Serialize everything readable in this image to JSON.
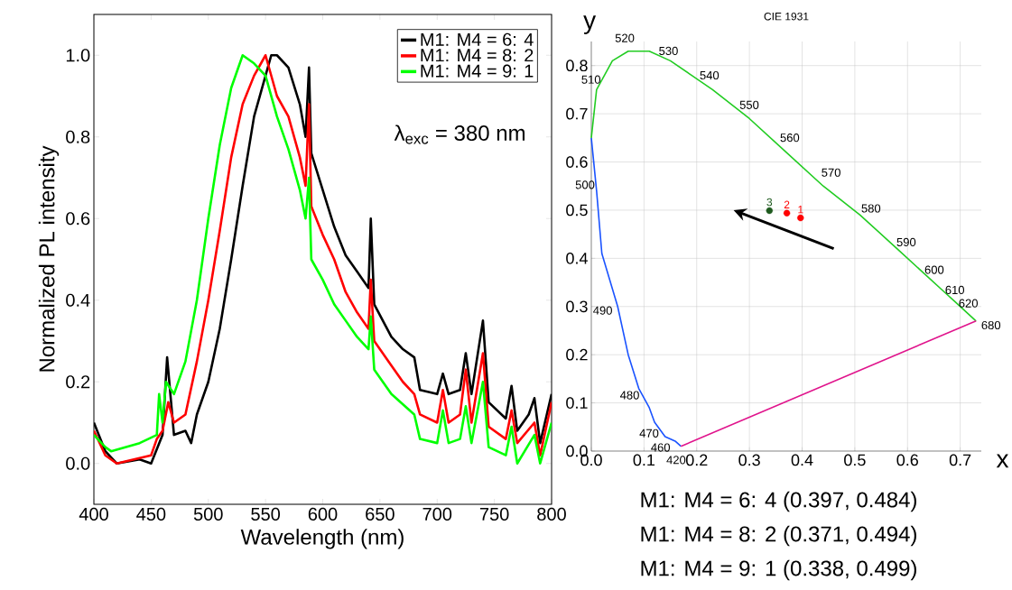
{
  "chart_data": [
    {
      "type": "line",
      "xlabel": "Wavelength (nm)",
      "ylabel": "Normalized PL intensity",
      "xlim": [
        400,
        800
      ],
      "ylim": [
        -0.1,
        1.1
      ],
      "xticks": [
        400,
        450,
        500,
        550,
        600,
        650,
        700,
        750,
        800
      ],
      "yticks": [
        {
          "value": 0,
          "label": "0.0"
        },
        {
          "value": 0.2,
          "label": "0.2"
        },
        {
          "value": 0.4,
          "label": "0.4"
        },
        {
          "value": 0.6,
          "label": "0.6"
        },
        {
          "value": 0.8,
          "label": "0.8"
        },
        {
          "value": 1.0,
          "label": "1.0"
        }
      ],
      "legend": "top right",
      "annotations": [
        "λ$_{exc}$ = 380 nm"
      ],
      "series": [
        {
          "name": "M1: M4 = 6: 4",
          "color": "#000000",
          "x": [
            400,
            410,
            420,
            440,
            450,
            460,
            464,
            470,
            480,
            485,
            490,
            500,
            510,
            520,
            530,
            540,
            550,
            555,
            560,
            570,
            580,
            585,
            588,
            590,
            600,
            610,
            620,
            630,
            640,
            642,
            645,
            660,
            670,
            680,
            685,
            700,
            705,
            710,
            720,
            725,
            730,
            740,
            745,
            760,
            765,
            770,
            780,
            785,
            790,
            800
          ],
          "values": [
            0.1,
            0.03,
            0.0,
            0.01,
            0.0,
            0.07,
            0.26,
            0.07,
            0.08,
            0.05,
            0.12,
            0.2,
            0.33,
            0.5,
            0.68,
            0.85,
            0.95,
            1.0,
            1.0,
            0.97,
            0.88,
            0.8,
            0.97,
            0.76,
            0.67,
            0.58,
            0.51,
            0.47,
            0.43,
            0.6,
            0.39,
            0.31,
            0.28,
            0.26,
            0.18,
            0.17,
            0.22,
            0.17,
            0.18,
            0.27,
            0.17,
            0.35,
            0.15,
            0.11,
            0.19,
            0.08,
            0.12,
            0.16,
            0.05,
            0.17
          ]
        },
        {
          "name": "M1: M4 = 8: 2",
          "color": "#ff0000",
          "x": [
            400,
            410,
            420,
            450,
            455,
            460,
            465,
            470,
            480,
            490,
            500,
            510,
            520,
            530,
            540,
            550,
            560,
            570,
            580,
            585,
            588,
            590,
            600,
            610,
            620,
            630,
            640,
            642,
            645,
            660,
            670,
            680,
            685,
            700,
            705,
            710,
            720,
            725,
            730,
            740,
            745,
            760,
            765,
            770,
            785,
            790,
            800
          ],
          "values": [
            0.08,
            0.02,
            0.0,
            0.02,
            0.06,
            0.08,
            0.15,
            0.1,
            0.12,
            0.25,
            0.4,
            0.57,
            0.75,
            0.88,
            0.95,
            1.0,
            0.9,
            0.85,
            0.75,
            0.68,
            0.88,
            0.63,
            0.56,
            0.5,
            0.42,
            0.37,
            0.33,
            0.45,
            0.3,
            0.24,
            0.2,
            0.17,
            0.12,
            0.1,
            0.18,
            0.1,
            0.12,
            0.23,
            0.1,
            0.27,
            0.09,
            0.06,
            0.13,
            0.05,
            0.1,
            0.02,
            0.15
          ]
        },
        {
          "name": "M1: M4 = 9: 1",
          "color": "#00ff00",
          "x": [
            400,
            410,
            415,
            440,
            455,
            457,
            460,
            463,
            470,
            480,
            490,
            500,
            510,
            520,
            530,
            540,
            550,
            560,
            570,
            580,
            585,
            588,
            590,
            600,
            610,
            620,
            630,
            640,
            642,
            645,
            660,
            680,
            685,
            700,
            705,
            710,
            720,
            725,
            730,
            740,
            745,
            760,
            765,
            770,
            785,
            790,
            800
          ],
          "values": [
            0.07,
            0.04,
            0.03,
            0.05,
            0.07,
            0.17,
            0.1,
            0.2,
            0.17,
            0.25,
            0.4,
            0.6,
            0.78,
            0.92,
            1.0,
            0.98,
            0.95,
            0.85,
            0.77,
            0.67,
            0.6,
            0.7,
            0.5,
            0.45,
            0.39,
            0.35,
            0.31,
            0.28,
            0.36,
            0.23,
            0.17,
            0.12,
            0.06,
            0.05,
            0.13,
            0.05,
            0.06,
            0.14,
            0.05,
            0.2,
            0.04,
            0.02,
            0.09,
            0.0,
            0.07,
            0.0,
            0.1
          ]
        }
      ]
    },
    {
      "type": "scatter",
      "title": "CIE 1931",
      "xlabel": "x",
      "ylabel": "y",
      "xlim": [
        0,
        0.74
      ],
      "ylim": [
        0,
        0.85
      ],
      "xticks": [
        {
          "value": 0,
          "label": "0.0"
        },
        {
          "value": 0.1,
          "label": "0.1"
        },
        {
          "value": 0.2,
          "label": "0.2"
        },
        {
          "value": 0.3,
          "label": "0.3"
        },
        {
          "value": 0.4,
          "label": "0.4"
        },
        {
          "value": 0.5,
          "label": "0.5"
        },
        {
          "value": 0.6,
          "label": "0.6"
        },
        {
          "value": 0.7,
          "label": "0.7"
        }
      ],
      "yticks": [
        {
          "value": 0,
          "label": "0.0"
        },
        {
          "value": 0.1,
          "label": "0.1"
        },
        {
          "value": 0.2,
          "label": "0.2"
        },
        {
          "value": 0.3,
          "label": "0.3"
        },
        {
          "value": 0.4,
          "label": "0.4"
        },
        {
          "value": 0.5,
          "label": "0.5"
        },
        {
          "value": 0.6,
          "label": "0.6"
        },
        {
          "value": 0.7,
          "label": "0.7"
        },
        {
          "value": 0.8,
          "label": "0.8"
        }
      ],
      "grid": true,
      "series": [
        {
          "type": "line",
          "color": "#1a53ff",
          "x": [
            0.0,
            0.01,
            0.02,
            0.05,
            0.07,
            0.09,
            0.11,
            0.12,
            0.14,
            0.16,
            0.17
          ],
          "values": [
            0.65,
            0.54,
            0.41,
            0.3,
            0.2,
            0.13,
            0.09,
            0.06,
            0.03,
            0.02,
            0.01
          ]
        },
        {
          "type": "line",
          "color": "#22cc22",
          "x": [
            0.0,
            0.01,
            0.04,
            0.07,
            0.11,
            0.15,
            0.19,
            0.23,
            0.3,
            0.37,
            0.44,
            0.51,
            0.58,
            0.63,
            0.67,
            0.69,
            0.73
          ],
          "values": [
            0.65,
            0.75,
            0.81,
            0.83,
            0.83,
            0.81,
            0.78,
            0.75,
            0.69,
            0.62,
            0.55,
            0.49,
            0.42,
            0.37,
            0.33,
            0.31,
            0.27
          ]
        },
        {
          "type": "line",
          "color": "#e0148c",
          "x": [
            0.17,
            0.73
          ],
          "values": [
            0.01,
            0.27
          ]
        },
        {
          "name": "1",
          "color": "#ff0000",
          "x": [
            0.397
          ],
          "values": [
            0.484
          ]
        },
        {
          "name": "2",
          "color": "#ff0000",
          "x": [
            0.371
          ],
          "values": [
            0.494
          ]
        },
        {
          "name": "3",
          "color": "#1e5a1e",
          "x": [
            0.338
          ],
          "values": [
            0.499
          ]
        }
      ],
      "annotations": [
        {
          "text": "420",
          "x": 0.1714,
          "y": 0.0051
        },
        {
          "text": "460",
          "x": 0.144,
          "y": 0.0297
        },
        {
          "text": "470",
          "x": 0.1241,
          "y": 0.0578
        },
        {
          "text": "480",
          "x": 0.0913,
          "y": 0.1327
        },
        {
          "text": "490",
          "x": 0.0454,
          "y": 0.295
        },
        {
          "text": "500",
          "x": 0.0082,
          "y": 0.5384
        },
        {
          "text": "510",
          "x": 0.0139,
          "y": 0.7502
        },
        {
          "text": "520",
          "x": 0.0743,
          "y": 0.8338
        },
        {
          "text": "530",
          "x": 0.1547,
          "y": 0.8059
        },
        {
          "text": "540",
          "x": 0.2296,
          "y": 0.7543
        },
        {
          "text": "550",
          "x": 0.3016,
          "y": 0.6923
        },
        {
          "text": "560",
          "x": 0.3731,
          "y": 0.6245
        },
        {
          "text": "570",
          "x": 0.4441,
          "y": 0.5547
        },
        {
          "text": "580",
          "x": 0.5125,
          "y": 0.4866
        },
        {
          "text": "590",
          "x": 0.5752,
          "y": 0.4242
        },
        {
          "text": "600",
          "x": 0.627,
          "y": 0.3725
        },
        {
          "text": "610",
          "x": 0.6658,
          "y": 0.334
        },
        {
          "text": "620",
          "x": 0.6915,
          "y": 0.3083
        },
        {
          "text": "680",
          "x": 0.7347,
          "y": 0.2653
        },
        "M1: M4 = 6: 4   (0.397, 0.484)",
        "M1: M4 = 8: 2   (0.371, 0.494)",
        "M1: M4 = 9: 1   (0.338, 0.499)"
      ]
    }
  ]
}
